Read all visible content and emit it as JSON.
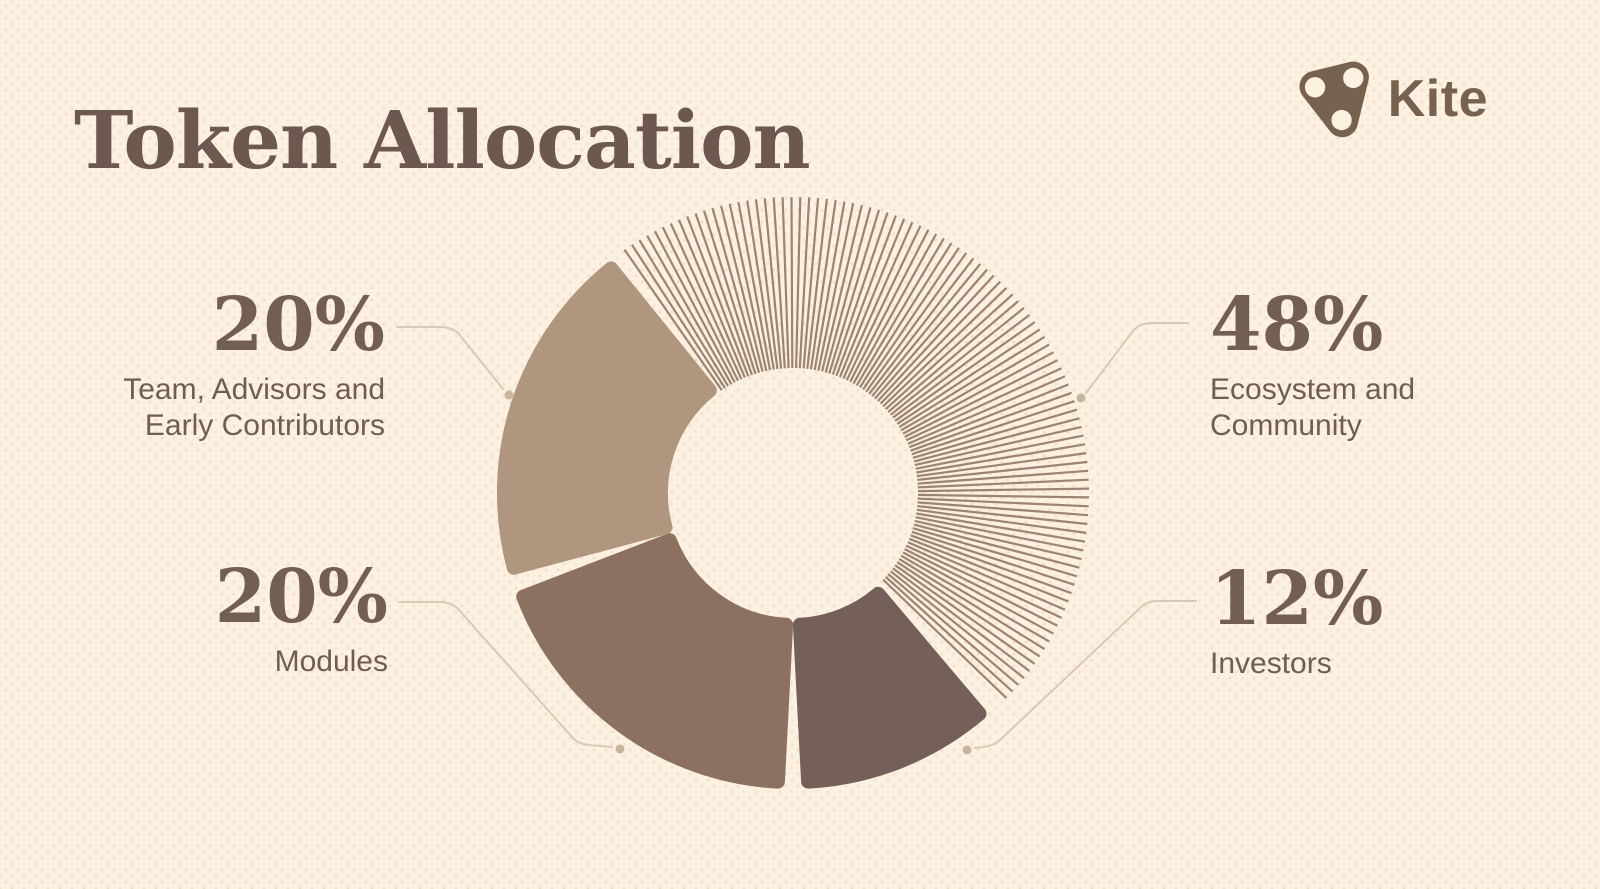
{
  "header": {
    "title": "Token Allocation",
    "brand": "Kite"
  },
  "chart_data": {
    "type": "pie",
    "donut": true,
    "title": "Token Allocation",
    "start_angle_deg": -36,
    "direction": "clockwise",
    "legend_position": "callouts",
    "slices": [
      {
        "label": "Ecosystem and Community",
        "value_pct": 48,
        "fill_style": "hatched",
        "color": "#9c8472"
      },
      {
        "label": "Investors",
        "value_pct": 12,
        "fill_style": "solid",
        "color": "#746059"
      },
      {
        "label": "Modules",
        "value_pct": 20,
        "fill_style": "solid",
        "color": "#8d7160"
      },
      {
        "label": "Team, Advisors and Early Contributors",
        "value_pct": 20,
        "fill_style": "solid",
        "color": "#b0967f"
      }
    ]
  },
  "callouts": {
    "team": {
      "pct": "20%",
      "line1": "Team, Advisors and",
      "line2": "Early Contributors"
    },
    "ecosystem": {
      "pct": "48%",
      "line1": "Ecosystem and",
      "line2": "Community"
    },
    "modules": {
      "pct": "20%",
      "line1": "Modules",
      "line2": ""
    },
    "investors": {
      "pct": "12%",
      "line1": "Investors",
      "line2": ""
    }
  },
  "colors": {
    "background": "#fcf0e0",
    "title_ink": "#6d5850",
    "number_ink": "#735e54",
    "label_ink": "#6f5d51",
    "brand_ink": "#77624f",
    "leader_line": "#d9c9b6",
    "leader_dot": "#c8b5a0"
  }
}
